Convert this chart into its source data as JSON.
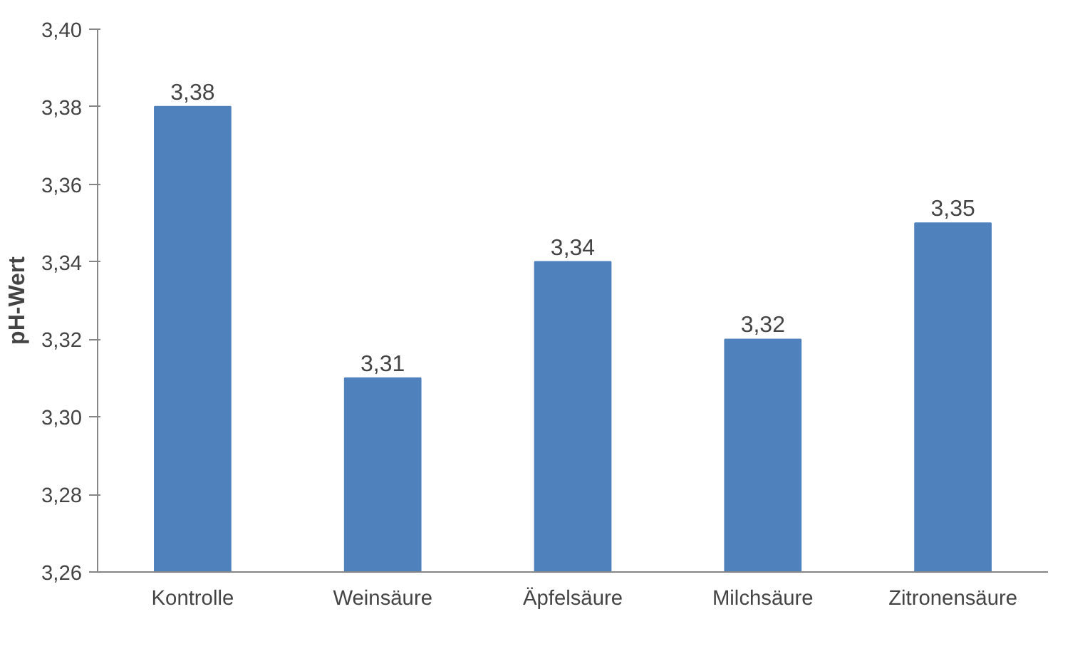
{
  "chart_data": {
    "type": "bar",
    "ylabel": "pH-Wert",
    "categories": [
      "Kontrolle",
      "Weinsäure",
      "Äpfelsäure",
      "Milchsäure",
      "Zitronensäure"
    ],
    "values": [
      3.38,
      3.31,
      3.34,
      3.32,
      3.35
    ],
    "color": "#4f81bd",
    "value_labels": [
      "3,38",
      "3,31",
      "3,34",
      "3,32",
      "3,35"
    ],
    "ylim": [
      3.26,
      3.4
    ],
    "yticks": [
      {
        "value": 3.26,
        "label": "3,26"
      },
      {
        "value": 3.28,
        "label": "3,28"
      },
      {
        "value": 3.3,
        "label": "3,30"
      },
      {
        "value": 3.32,
        "label": "3,32"
      },
      {
        "value": 3.34,
        "label": "3,34"
      },
      {
        "value": 3.36,
        "label": "3,36"
      },
      {
        "value": 3.38,
        "label": "3,38"
      },
      {
        "value": 3.4,
        "label": "3,40"
      }
    ],
    "grid": false
  }
}
